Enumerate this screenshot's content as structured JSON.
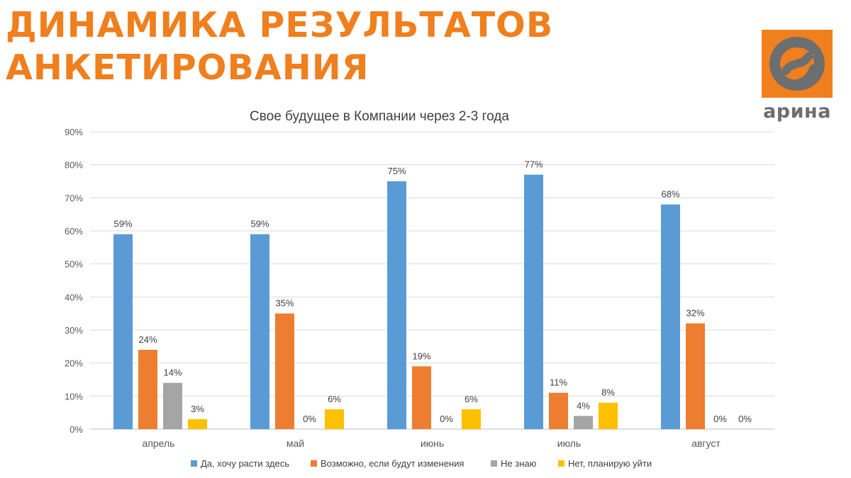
{
  "header": {
    "title_line1": "ДИНАМИКА РЕЗУЛЬТАТОВ",
    "title_line2": "АНКЕТИРОВАНИЯ"
  },
  "logo": {
    "text": "арина",
    "icon": "arina-logo-icon"
  },
  "colors": {
    "title": "#f07f1e",
    "logo_orange": "#f07f1e",
    "logo_gray": "#6d6e70"
  },
  "chart_data": {
    "type": "bar",
    "title": "Свое будущее в Компании через 2-3 года",
    "xlabel": "",
    "ylabel": "",
    "ylim": [
      0,
      90
    ],
    "yticks": [
      0,
      10,
      20,
      30,
      40,
      50,
      60,
      70,
      80,
      90
    ],
    "ytick_suffix": "%",
    "grid": true,
    "legend_position": "bottom",
    "categories": [
      "апрель",
      "май",
      "июнь",
      "июль",
      "август"
    ],
    "series": [
      {
        "name": "Да, хочу расти здесь",
        "color": "#5b9bd5",
        "values": [
          59,
          59,
          75,
          77,
          68
        ],
        "labels": [
          "59%",
          "59%",
          "75%",
          "77%",
          "68%"
        ]
      },
      {
        "name": "Возможно, если будут изменения",
        "color": "#ed7d31",
        "values": [
          24,
          35,
          19,
          11,
          32
        ],
        "labels": [
          "24%",
          "35%",
          "19%",
          "11%",
          "32%"
        ]
      },
      {
        "name": "Не знаю",
        "color": "#a5a5a5",
        "values": [
          14,
          0,
          0,
          4,
          0
        ],
        "labels": [
          "14%",
          "0%",
          "0%",
          "4%",
          "0%"
        ]
      },
      {
        "name": "Нет, планирую уйти",
        "color": "#ffc000",
        "values": [
          3,
          6,
          6,
          8,
          0
        ],
        "labels": [
          "3%",
          "6%",
          "6%",
          "8%",
          "0%"
        ]
      }
    ]
  }
}
